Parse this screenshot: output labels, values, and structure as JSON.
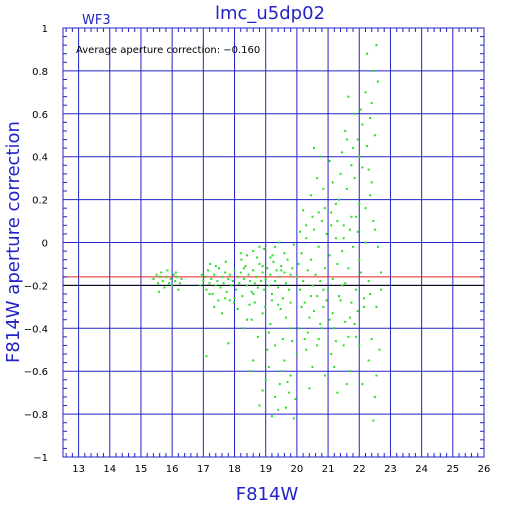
{
  "chart_data": {
    "type": "scatter",
    "title": "lmc_u5dp02",
    "panel_label": "WF3",
    "annotation": "Average aperture correction: −0.160",
    "xlabel": "F814W",
    "ylabel": "F814W aperture correction",
    "xlim": [
      12.5,
      26
    ],
    "ylim": [
      -1,
      1
    ],
    "x_ticks": [
      13,
      14,
      15,
      16,
      17,
      18,
      19,
      20,
      21,
      22,
      23,
      24,
      25,
      26
    ],
    "y_ticks": [
      -1,
      -0.8,
      -0.6,
      -0.4,
      -0.2,
      0,
      0.2,
      0.4,
      0.6,
      0.8,
      1
    ],
    "x_tick_labels": [
      "13",
      "14",
      "15",
      "16",
      "17",
      "18",
      "19",
      "20",
      "21",
      "22",
      "23",
      "24",
      "25",
      "26"
    ],
    "y_tick_labels": [
      "−1",
      "−0.8",
      "−0.6",
      "−0.4",
      "−0.2",
      "0",
      "0.2",
      "0.4",
      "0.6",
      "0.8",
      "1"
    ],
    "grid": true,
    "reference_lines": [
      {
        "y": -0.16,
        "color": "#e02020"
      },
      {
        "y": -0.2,
        "color": "#000000"
      }
    ],
    "point_color": "#22e022",
    "axis_color": "#2323c8",
    "points": [
      [
        15.4,
        -0.17
      ],
      [
        15.5,
        -0.15
      ],
      [
        15.55,
        -0.19
      ],
      [
        15.6,
        -0.16
      ],
      [
        15.65,
        -0.14
      ],
      [
        15.7,
        -0.18
      ],
      [
        15.75,
        -0.21
      ],
      [
        15.8,
        -0.16
      ],
      [
        15.85,
        -0.13
      ],
      [
        15.9,
        -0.19
      ],
      [
        15.95,
        -0.17
      ],
      [
        16.0,
        -0.2
      ],
      [
        16.05,
        -0.15
      ],
      [
        16.1,
        -0.18
      ],
      [
        16.15,
        -0.16
      ],
      [
        16.2,
        -0.22
      ],
      [
        16.25,
        -0.19
      ],
      [
        16.3,
        -0.17
      ],
      [
        15.58,
        -0.23
      ],
      [
        16.12,
        -0.14
      ],
      [
        16.9,
        -0.2
      ],
      [
        16.95,
        -0.15
      ],
      [
        17.0,
        -0.18
      ],
      [
        17.05,
        -0.16
      ],
      [
        17.1,
        -0.22
      ],
      [
        17.15,
        -0.13
      ],
      [
        17.2,
        -0.19
      ],
      [
        17.25,
        -0.17
      ],
      [
        17.3,
        -0.24
      ],
      [
        17.35,
        -0.15
      ],
      [
        17.4,
        -0.2
      ],
      [
        17.45,
        -0.18
      ],
      [
        17.5,
        -0.12
      ],
      [
        17.55,
        -0.21
      ],
      [
        17.6,
        -0.16
      ],
      [
        17.65,
        -0.19
      ],
      [
        17.7,
        -0.14
      ],
      [
        17.75,
        -0.23
      ],
      [
        17.8,
        -0.17
      ],
      [
        17.85,
        -0.15
      ],
      [
        17.9,
        -0.2
      ],
      [
        17.95,
        -0.18
      ],
      [
        18.0,
        -0.13
      ],
      [
        18.05,
        -0.22
      ],
      [
        18.1,
        -0.16
      ],
      [
        18.15,
        -0.19
      ],
      [
        18.2,
        -0.14
      ],
      [
        18.25,
        -0.25
      ],
      [
        18.3,
        -0.17
      ],
      [
        18.35,
        -0.11
      ],
      [
        18.4,
        -0.2
      ],
      [
        18.45,
        -0.15
      ],
      [
        18.5,
        -0.18
      ],
      [
        18.55,
        -0.23
      ],
      [
        18.6,
        -0.13
      ],
      [
        18.65,
        -0.19
      ],
      [
        18.7,
        -0.16
      ],
      [
        18.75,
        -0.21
      ],
      [
        18.8,
        -0.1
      ],
      [
        18.85,
        -0.18
      ],
      [
        18.9,
        -0.14
      ],
      [
        18.95,
        -0.22
      ],
      [
        19.0,
        -0.17
      ],
      [
        19.05,
        -0.12
      ],
      [
        19.1,
        -0.2
      ],
      [
        19.15,
        -0.15
      ],
      [
        19.2,
        -0.24
      ],
      [
        19.25,
        -0.09
      ],
      [
        19.3,
        -0.18
      ],
      [
        19.35,
        -0.13
      ],
      [
        19.4,
        -0.21
      ],
      [
        19.45,
        -0.16
      ],
      [
        19.5,
        -0.11
      ],
      [
        19.55,
        -0.26
      ],
      [
        19.6,
        -0.14
      ],
      [
        19.65,
        -0.19
      ],
      [
        19.7,
        -0.08
      ],
      [
        19.75,
        -0.22
      ],
      [
        19.8,
        -0.15
      ],
      [
        19.85,
        -0.12
      ],
      [
        17.22,
        -0.1
      ],
      [
        17.48,
        -0.27
      ],
      [
        17.72,
        -0.09
      ],
      [
        17.98,
        -0.28
      ],
      [
        18.22,
        -0.08
      ],
      [
        18.48,
        -0.29
      ],
      [
        18.72,
        -0.07
      ],
      [
        18.98,
        -0.3
      ],
      [
        19.22,
        -0.06
      ],
      [
        19.48,
        -0.31
      ],
      [
        17.35,
        -0.3
      ],
      [
        17.6,
        -0.33
      ],
      [
        17.85,
        -0.27
      ],
      [
        18.1,
        -0.31
      ],
      [
        18.4,
        -0.36
      ],
      [
        18.65,
        -0.28
      ],
      [
        18.9,
        -0.33
      ],
      [
        19.15,
        -0.38
      ],
      [
        19.4,
        -0.29
      ],
      [
        19.65,
        -0.35
      ],
      [
        17.1,
        -0.53
      ],
      [
        17.8,
        -0.47
      ],
      [
        18.3,
        -0.4
      ],
      [
        18.75,
        -0.44
      ],
      [
        19.1,
        -0.42
      ],
      [
        19.3,
        -0.48
      ],
      [
        19.55,
        -0.45
      ],
      [
        19.8,
        -0.4
      ],
      [
        18.55,
        -0.36
      ],
      [
        19.05,
        -0.5
      ],
      [
        18.2,
        -0.05
      ],
      [
        18.6,
        -0.04
      ],
      [
        18.95,
        -0.03
      ],
      [
        19.3,
        -0.02
      ],
      [
        19.6,
        -0.05
      ],
      [
        19.9,
        -0.01
      ],
      [
        18.4,
        -0.06
      ],
      [
        18.8,
        -0.02
      ],
      [
        19.15,
        -0.07
      ],
      [
        19.45,
        0.0
      ],
      [
        20.0,
        -0.16
      ],
      [
        20.05,
        -0.1
      ],
      [
        20.1,
        -0.22
      ],
      [
        20.15,
        -0.05
      ],
      [
        20.2,
        -0.18
      ],
      [
        20.25,
        -0.28
      ],
      [
        20.3,
        0.02
      ],
      [
        20.35,
        -0.13
      ],
      [
        20.4,
        -0.35
      ],
      [
        20.45,
        -0.08
      ],
      [
        20.5,
        -0.2
      ],
      [
        20.55,
        0.06
      ],
      [
        20.6,
        -0.15
      ],
      [
        20.65,
        -0.25
      ],
      [
        20.7,
        -0.02
      ],
      [
        20.75,
        -0.18
      ],
      [
        20.8,
        0.1
      ],
      [
        20.85,
        -0.3
      ],
      [
        20.9,
        -0.12
      ],
      [
        20.95,
        0.04
      ],
      [
        21.0,
        -0.22
      ],
      [
        21.05,
        -0.06
      ],
      [
        21.1,
        0.14
      ],
      [
        21.15,
        -0.17
      ],
      [
        21.2,
        -0.4
      ],
      [
        21.25,
        0.02
      ],
      [
        21.3,
        -0.1
      ],
      [
        21.35,
        0.2
      ],
      [
        21.4,
        -0.27
      ],
      [
        21.45,
        -0.04
      ],
      [
        21.5,
        0.08
      ],
      [
        21.55,
        -0.19
      ],
      [
        21.6,
        0.25
      ],
      [
        21.65,
        -0.12
      ],
      [
        21.7,
        -0.35
      ],
      [
        21.75,
        0.12
      ],
      [
        21.8,
        -0.02
      ],
      [
        21.85,
        0.3
      ],
      [
        21.9,
        -0.22
      ],
      [
        21.95,
        0.05
      ],
      [
        22.0,
        0.18
      ],
      [
        22.05,
        -0.14
      ],
      [
        22.1,
        0.35
      ],
      [
        22.15,
        -0.3
      ],
      [
        22.2,
        0.0
      ],
      [
        22.25,
        0.45
      ],
      [
        22.3,
        -0.18
      ],
      [
        22.35,
        0.22
      ],
      [
        22.4,
        -0.45
      ],
      [
        22.45,
        0.1
      ],
      [
        20.2,
        0.15
      ],
      [
        20.45,
        0.22
      ],
      [
        20.65,
        0.3
      ],
      [
        20.85,
        0.25
      ],
      [
        21.05,
        0.38
      ],
      [
        21.25,
        0.18
      ],
      [
        21.45,
        0.42
      ],
      [
        21.55,
        0.52
      ],
      [
        21.75,
        0.36
      ],
      [
        21.95,
        0.48
      ],
      [
        22.05,
        0.62
      ],
      [
        22.2,
        0.7
      ],
      [
        22.35,
        0.58
      ],
      [
        22.45,
        0.8
      ],
      [
        22.25,
        0.88
      ],
      [
        22.55,
        0.92
      ],
      [
        22.6,
        0.75
      ],
      [
        21.85,
        0.6
      ],
      [
        21.65,
        0.68
      ],
      [
        22.1,
        0.55
      ],
      [
        21.6,
        0.48
      ],
      [
        21.4,
        0.32
      ],
      [
        21.8,
        0.44
      ],
      [
        22.0,
        0.4
      ],
      [
        22.4,
        0.65
      ],
      [
        22.5,
        0.5
      ],
      [
        22.3,
        0.34
      ],
      [
        20.75,
        0.4
      ],
      [
        20.55,
        0.44
      ],
      [
        21.15,
        0.28
      ],
      [
        20.3,
        -0.5
      ],
      [
        20.5,
        -0.58
      ],
      [
        20.7,
        -0.45
      ],
      [
        20.9,
        -0.62
      ],
      [
        21.1,
        -0.52
      ],
      [
        21.3,
        -0.7
      ],
      [
        21.5,
        -0.48
      ],
      [
        21.7,
        -0.6
      ],
      [
        21.9,
        -0.44
      ],
      [
        22.1,
        -0.66
      ],
      [
        22.3,
        -0.55
      ],
      [
        22.5,
        -0.72
      ],
      [
        22.65,
        -0.5
      ],
      [
        22.55,
        -0.62
      ],
      [
        22.45,
        -0.83
      ],
      [
        20.4,
        -0.68
      ],
      [
        20.8,
        -0.4
      ],
      [
        21.2,
        -0.58
      ],
      [
        21.6,
        -0.66
      ],
      [
        22.0,
        -0.48
      ],
      [
        19.8,
        -0.62
      ],
      [
        19.7,
        -0.65
      ],
      [
        19.95,
        -0.73
      ],
      [
        19.6,
        -0.55
      ],
      [
        19.9,
        -0.82
      ],
      [
        19.5,
        -0.6
      ],
      [
        20.0,
        -0.52
      ],
      [
        19.4,
        -0.78
      ],
      [
        19.75,
        -0.7
      ],
      [
        19.85,
        -0.46
      ],
      [
        19.3,
        -0.72
      ],
      [
        19.2,
        -0.81
      ],
      [
        19.1,
        -0.58
      ],
      [
        18.9,
        -0.69
      ],
      [
        18.8,
        -0.76
      ],
      [
        19.0,
        -0.64
      ],
      [
        19.45,
        -0.66
      ],
      [
        19.65,
        -0.77
      ],
      [
        18.6,
        -0.55
      ],
      [
        18.5,
        -0.6
      ],
      [
        20.15,
        -0.3
      ],
      [
        20.35,
        -0.42
      ],
      [
        20.55,
        -0.32
      ],
      [
        20.75,
        -0.38
      ],
      [
        20.95,
        -0.27
      ],
      [
        21.15,
        -0.33
      ],
      [
        21.35,
        -0.25
      ],
      [
        21.55,
        -0.37
      ],
      [
        21.75,
        -0.28
      ],
      [
        21.95,
        -0.32
      ],
      [
        22.15,
        -0.26
      ],
      [
        22.35,
        -0.24
      ],
      [
        22.55,
        -0.3
      ],
      [
        22.7,
        -0.22
      ],
      [
        22.7,
        -0.14
      ],
      [
        22.6,
        -0.02
      ],
      [
        22.5,
        0.06
      ],
      [
        22.4,
        0.28
      ],
      [
        22.2,
        0.16
      ],
      [
        22.0,
        -0.08
      ],
      [
        20.1,
        0.05
      ],
      [
        20.3,
        0.08
      ],
      [
        20.5,
        0.12
      ],
      [
        20.7,
        0.14
      ],
      [
        20.9,
        0.16
      ],
      [
        21.1,
        0.08
      ],
      [
        21.3,
        0.1
      ],
      [
        21.5,
        0.02
      ],
      [
        21.7,
        0.06
      ],
      [
        21.9,
        0.12
      ],
      [
        20.05,
        -0.4
      ],
      [
        20.25,
        -0.45
      ],
      [
        20.45,
        -0.25
      ],
      [
        20.65,
        -0.48
      ],
      [
        20.85,
        -0.22
      ],
      [
        21.05,
        -0.36
      ],
      [
        21.25,
        -0.46
      ],
      [
        21.45,
        -0.2
      ],
      [
        21.65,
        -0.44
      ],
      [
        21.85,
        -0.38
      ],
      [
        18.0,
        -0.26
      ],
      [
        18.3,
        -0.12
      ],
      [
        18.6,
        -0.24
      ],
      [
        18.9,
        -0.11
      ],
      [
        19.2,
        -0.27
      ],
      [
        19.5,
        -0.13
      ],
      [
        19.8,
        -0.28
      ],
      [
        17.7,
        -0.26
      ],
      [
        17.4,
        -0.11
      ],
      [
        17.2,
        -0.24
      ]
    ]
  }
}
